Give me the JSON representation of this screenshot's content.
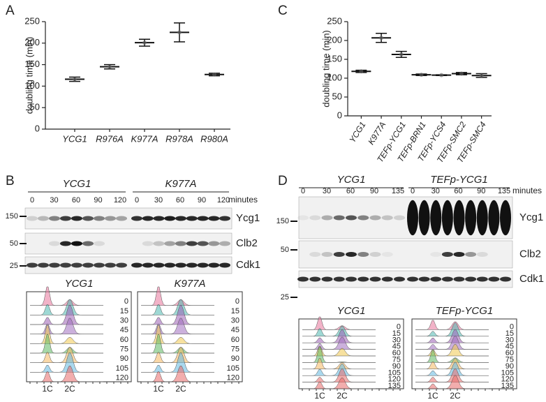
{
  "panels": [
    "A",
    "B",
    "C",
    "D"
  ],
  "chart_data": [
    {
      "type": "errorbar",
      "ylabel": "doubling time (min)",
      "categories": [
        "YCG1",
        "R976A",
        "K977A",
        "R978A",
        "R980A"
      ],
      "values": [
        116,
        145,
        201,
        225,
        127
      ],
      "errors": [
        5,
        5,
        8,
        22,
        3
      ],
      "color": "#111111",
      "ylim": [
        0,
        250
      ],
      "yticks": [
        0,
        50,
        100,
        150,
        200,
        250
      ]
    },
    {
      "type": "errorbar",
      "ylabel": "doubling time (min)",
      "categories": [
        "YCG1",
        "K977A",
        "TEFp-YCG1",
        "TEFp-BRN1",
        "TEFp-YCS4",
        "TEFp-SMC2",
        "TEFp-SMC4"
      ],
      "values": [
        118,
        207,
        163,
        109,
        108,
        112,
        107
      ],
      "errors": [
        3,
        12,
        8,
        2,
        1,
        3,
        5
      ],
      "color": "#111111",
      "ylim": [
        0,
        250
      ],
      "yticks": [
        0,
        50,
        100,
        150,
        200,
        250
      ]
    }
  ],
  "blots": [
    {
      "groups": [
        {
          "name": "YCG1",
          "times": [
            0,
            30,
            60,
            90,
            120
          ]
        },
        {
          "name": "K977A",
          "times": [
            0,
            30,
            60,
            90,
            120
          ]
        }
      ],
      "unit": "minutes",
      "proteins": [
        "Ycg1",
        "Clb2",
        "Cdk1"
      ],
      "markers": [
        150,
        50,
        25
      ]
    },
    {
      "groups": [
        {
          "name": "YCG1",
          "times": [
            0,
            30,
            60,
            90,
            135
          ]
        },
        {
          "name": "TEFp-YCG1",
          "times": [
            0,
            30,
            60,
            90,
            135
          ]
        }
      ],
      "unit": "minutes",
      "proteins": [
        "Ycg1",
        "Clb2",
        "Cdk1"
      ],
      "markers": [
        150,
        50,
        25
      ]
    }
  ],
  "flow": [
    {
      "samples": [
        {
          "name": "YCG1",
          "times": [
            0,
            15,
            30,
            45,
            60,
            75,
            90,
            105,
            120
          ]
        },
        {
          "name": "K977A",
          "times": [
            0,
            15,
            30,
            45,
            60,
            75,
            90,
            105,
            120
          ]
        }
      ],
      "peaks": [
        "1C",
        "2C"
      ]
    },
    {
      "samples": [
        {
          "name": "YCG1",
          "times": [
            0,
            15,
            30,
            45,
            60,
            75,
            90,
            105,
            120,
            135
          ]
        },
        {
          "name": "TEFp-YCG1",
          "times": [
            0,
            15,
            30,
            45,
            60,
            75,
            90,
            105,
            120,
            135
          ]
        }
      ],
      "peaks": [
        "1C",
        "2C"
      ]
    }
  ]
}
